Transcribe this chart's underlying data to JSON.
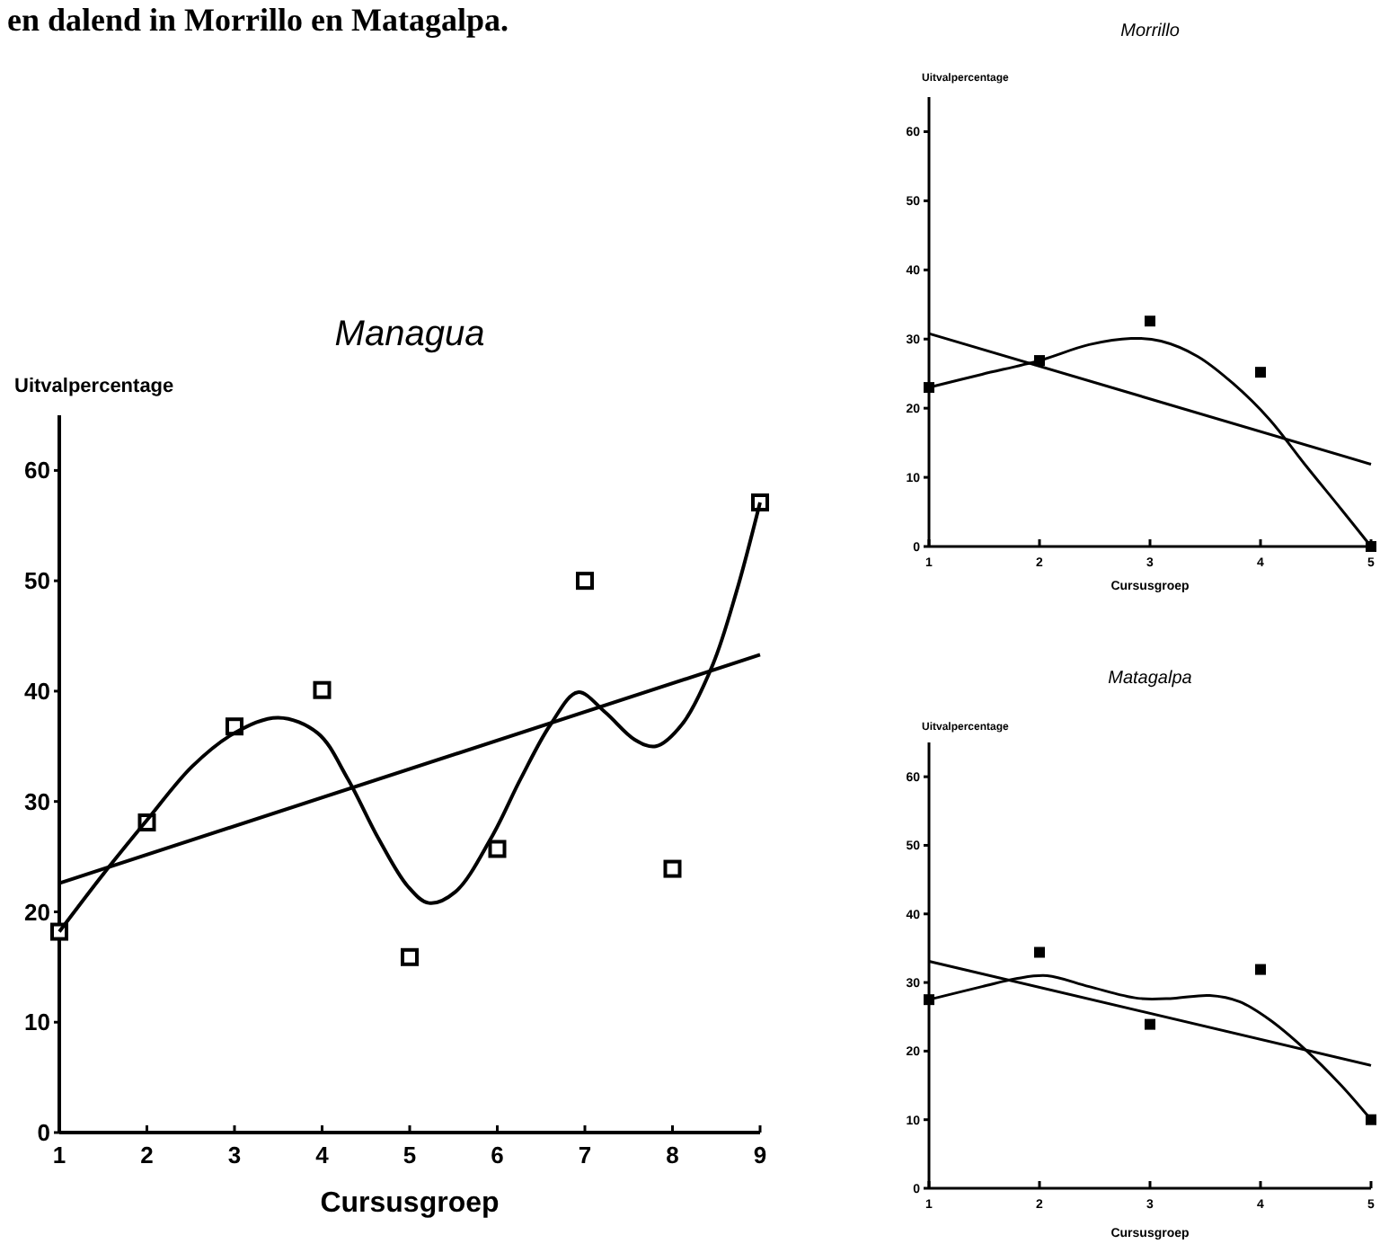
{
  "chart_data": [
    {
      "type": "scatter",
      "title": "Managua",
      "xlabel": "Cursusgroep",
      "ylabel": "Uitvalpercentage",
      "annotations": [
        "en dalend in Morrillo en Matagalpa."
      ],
      "xlim": [
        1,
        9
      ],
      "xticks": [
        1,
        2,
        3,
        4,
        5,
        6,
        7,
        8,
        9
      ],
      "ylim": [
        0,
        65
      ],
      "yticks": [
        0,
        10,
        20,
        30,
        40,
        50,
        60
      ],
      "series": [
        {
          "color": "#000000",
          "marker": "square",
          "x": [
            1,
            2,
            3,
            4,
            5,
            6,
            7,
            8,
            9
          ],
          "values": [
            18.2,
            28.1,
            36.8,
            40.1,
            15.9,
            25.7,
            50.0,
            23.9,
            57.1
          ]
        },
        {
          "type": "line",
          "color": "#000000",
          "marker": "none",
          "line_style": "solid",
          "x": [
            1,
            1.5,
            2,
            2.52,
            3,
            3.5,
            3.95,
            4.29,
            4.64,
            4.98,
            5.22,
            5.52,
            5.93,
            6.27,
            6.61,
            6.92,
            7.23,
            7.57,
            7.81,
            8.11,
            8.46,
            8.73,
            9
          ],
          "values": [
            18.2,
            23.4,
            28.3,
            33.2,
            36.2,
            37.6,
            36.2,
            32.1,
            26.7,
            22.3,
            20.8,
            21.8,
            26.7,
            32.1,
            37.0,
            39.9,
            38.1,
            35.6,
            35.0,
            37.0,
            42.4,
            49.0,
            57.1
          ]
        },
        {
          "type": "line",
          "color": "#000000",
          "marker": "none",
          "line_style": "solid",
          "x": [
            1,
            9
          ],
          "values": [
            22.6,
            43.3
          ]
        }
      ]
    },
    {
      "type": "scatter",
      "title": "Morrillo",
      "xlabel": "Cursusgroep",
      "ylabel": "Uitvalpercentage",
      "xlim": [
        1,
        5
      ],
      "xticks": [
        1,
        2,
        3,
        4,
        5
      ],
      "ylim": [
        0,
        65
      ],
      "yticks": [
        0,
        10,
        20,
        30,
        40,
        50,
        60
      ],
      "series": [
        {
          "color": "#000000",
          "marker": "square",
          "x": [
            1,
            2,
            3,
            4,
            5
          ],
          "values": [
            23.0,
            26.9,
            32.6,
            25.2,
            0
          ]
        },
        {
          "type": "line",
          "color": "#000000",
          "marker": "none",
          "line_style": "solid",
          "x": [
            1,
            1.48,
            2,
            2.45,
            2.83,
            3.1,
            3.43,
            3.75,
            4.08,
            4.4,
            4.73,
            5
          ],
          "values": [
            23.0,
            24.9,
            26.9,
            29.2,
            30.1,
            29.7,
            27.5,
            23.6,
            18.4,
            11.9,
            5.4,
            0
          ]
        },
        {
          "type": "line",
          "color": "#000000",
          "marker": "none",
          "line_style": "solid",
          "x": [
            1,
            5
          ],
          "values": [
            30.8,
            11.9
          ]
        }
      ]
    },
    {
      "type": "scatter",
      "title": "Matagalpa",
      "xlabel": "Cursusgroep",
      "ylabel": "Uitvalpercentage",
      "xlim": [
        1,
        5
      ],
      "xticks": [
        1,
        2,
        3,
        4,
        5
      ],
      "ylim": [
        0,
        65
      ],
      "yticks": [
        0,
        10,
        20,
        30,
        40,
        50,
        60
      ],
      "series": [
        {
          "color": "#000000",
          "marker": "square",
          "x": [
            1,
            2,
            3,
            4,
            5
          ],
          "values": [
            27.5,
            34.4,
            23.9,
            31.9,
            10.0
          ]
        },
        {
          "type": "line",
          "color": "#000000",
          "marker": "none",
          "line_style": "solid",
          "x": [
            1,
            1.48,
            1.8,
            2.07,
            2.45,
            2.89,
            3.21,
            3.54,
            3.81,
            4.08,
            4.4,
            4.73,
            5
          ],
          "values": [
            27.5,
            29.4,
            30.6,
            31.0,
            29.4,
            27.7,
            27.7,
            28.1,
            27.2,
            24.6,
            20.3,
            15.0,
            10.0
          ]
        },
        {
          "type": "line",
          "color": "#000000",
          "marker": "none",
          "line_style": "solid",
          "x": [
            1,
            5
          ],
          "values": [
            33.1,
            17.9
          ]
        }
      ]
    }
  ]
}
